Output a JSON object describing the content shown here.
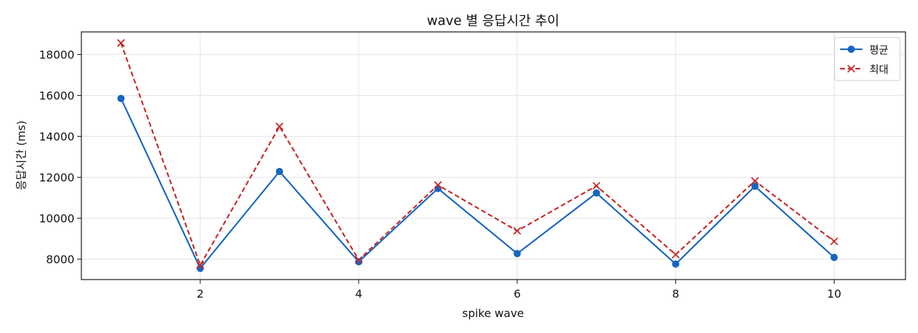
{
  "chart_data": {
    "type": "line",
    "title": "wave 별 응답시간 추이",
    "xlabel": "spike wave",
    "ylabel": "응답시간 (ms)",
    "x": [
      1,
      2,
      3,
      4,
      5,
      6,
      7,
      8,
      9,
      10
    ],
    "xlim": [
      0.5,
      10.9
    ],
    "ylim": [
      7000,
      19100
    ],
    "xticks": [
      2,
      4,
      6,
      8,
      10
    ],
    "yticks": [
      8000,
      10000,
      12000,
      14000,
      16000,
      18000
    ],
    "grid": true,
    "legend_position": "top-right",
    "series": [
      {
        "name": "평균",
        "values": [
          15850,
          7550,
          12280,
          7870,
          11450,
          8270,
          11230,
          7760,
          11560,
          8080
        ],
        "color": "#1565c0",
        "line_style": "solid",
        "marker": "circle"
      },
      {
        "name": "최대",
        "values": [
          18560,
          7700,
          14480,
          7960,
          11620,
          9380,
          11580,
          8220,
          11820,
          8870
        ],
        "color": "#c62828",
        "line_style": "dashed",
        "marker": "x"
      }
    ]
  }
}
